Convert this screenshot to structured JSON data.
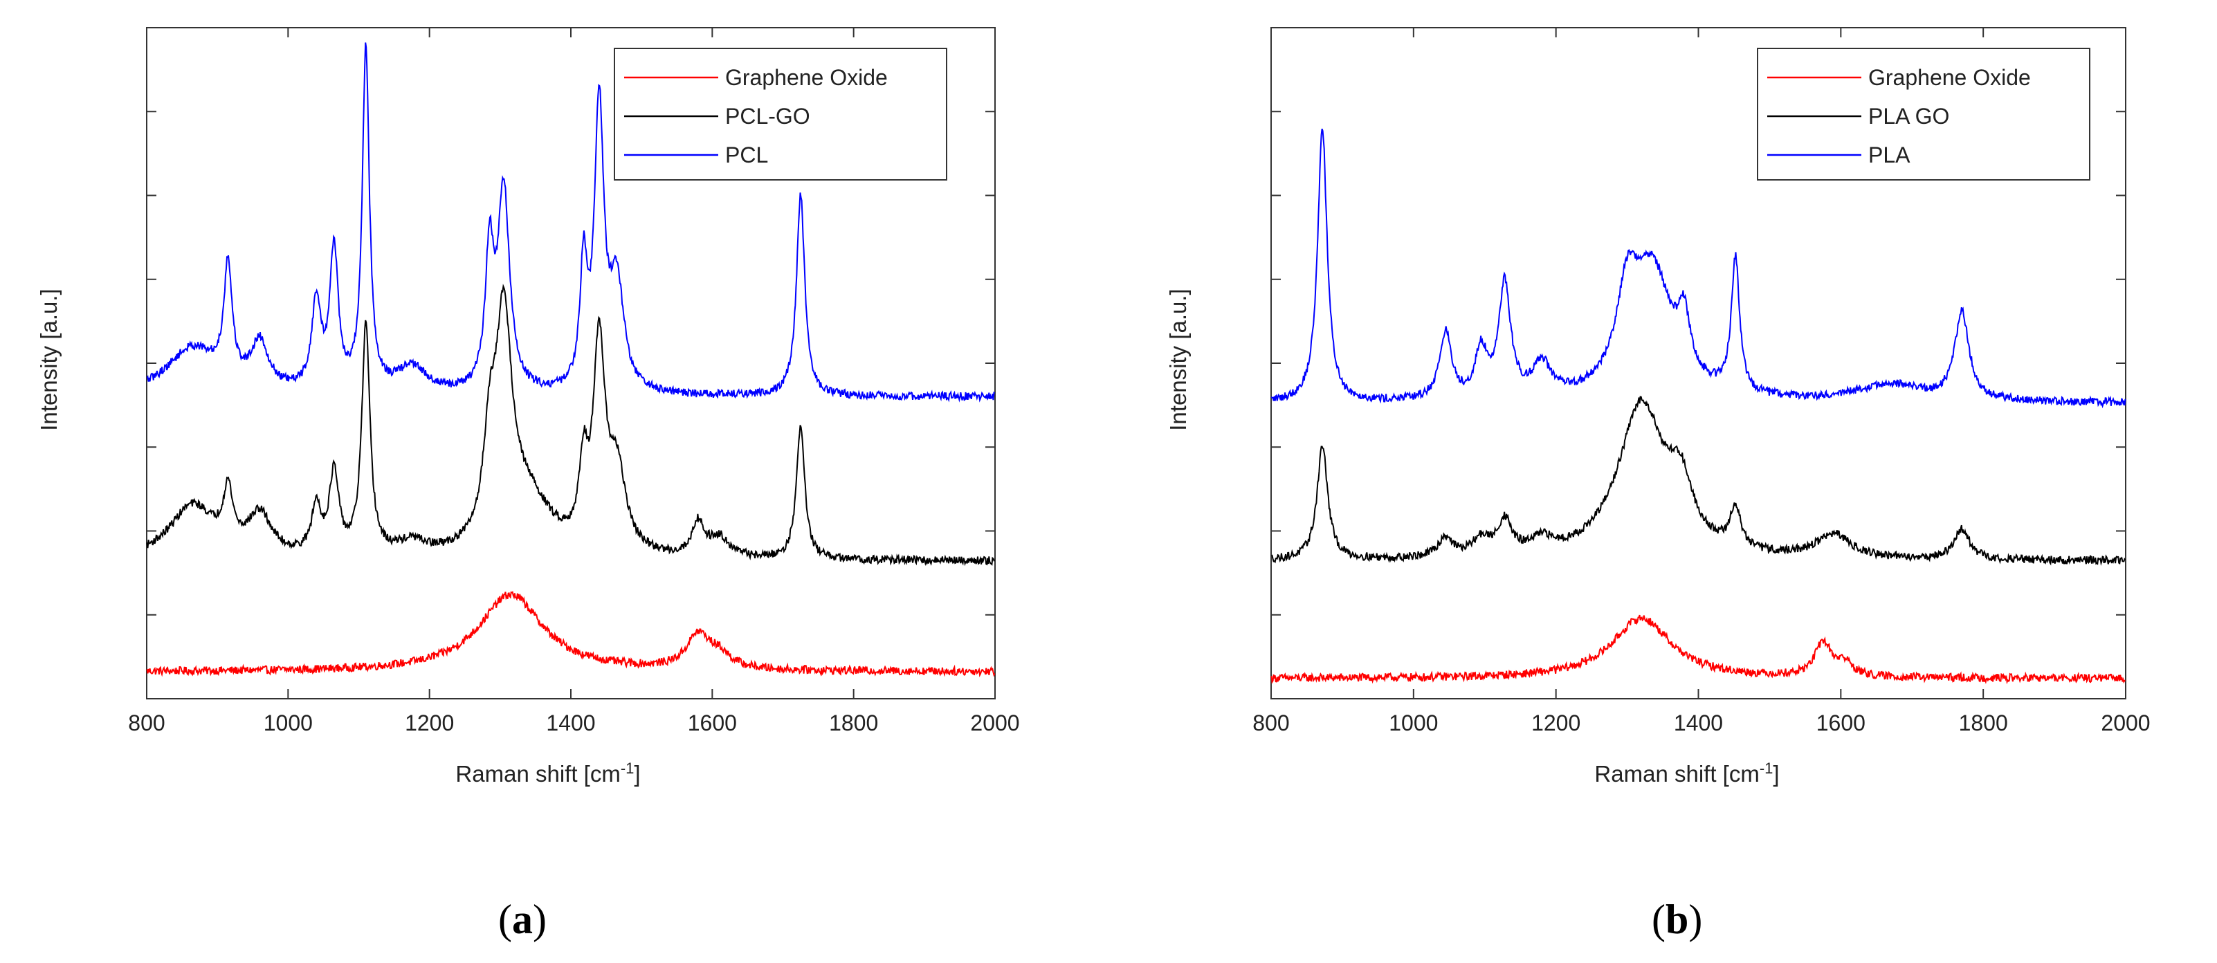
{
  "chart_data": [
    {
      "type": "line",
      "panel_label": "a",
      "title": "",
      "xlabel_text": "Raman shift [cm",
      "xlabel_sup": "-1",
      "xlabel_close": "]",
      "ylabel": "Intensity [a.u.]",
      "xlim": [
        800,
        2000
      ],
      "ylim": [
        0,
        10
      ],
      "x_ticks": [
        800,
        1000,
        1200,
        1400,
        1600,
        1800,
        2000
      ],
      "y_ticks_shown_as_labels": false,
      "legend_position": "top-right",
      "series": [
        {
          "name": "Graphene Oxide",
          "color": "#ff0000",
          "baseline": 0.4,
          "peaks": [
            [
              1315,
              1.15,
              55
            ],
            [
              1580,
              0.5,
              20
            ],
            [
              1610,
              0.2,
              20
            ]
          ]
        },
        {
          "name": "PCL-GO",
          "color": "#000000",
          "baseline": 2.05,
          "peaks": [
            [
              865,
              0.8,
              40
            ],
            [
              915,
              0.8,
              8
            ],
            [
              960,
              0.6,
              20
            ],
            [
              1040,
              0.7,
              8
            ],
            [
              1065,
              1.2,
              8
            ],
            [
              1110,
              3.4,
              7
            ],
            [
              1175,
              0.2,
              25
            ],
            [
              1285,
              1.3,
              10
            ],
            [
              1305,
              3.3,
              14
            ],
            [
              1340,
              0.8,
              40
            ],
            [
              1418,
              1.1,
              7
            ],
            [
              1440,
              3.0,
              10
            ],
            [
              1465,
              1.2,
              15
            ],
            [
              1580,
              0.5,
              10
            ],
            [
              1610,
              0.3,
              18
            ],
            [
              1725,
              2.0,
              7
            ]
          ]
        },
        {
          "name": "PCL",
          "color": "#0000ff",
          "baseline": 4.5,
          "peaks": [
            [
              865,
              0.7,
              45
            ],
            [
              915,
              1.7,
              7
            ],
            [
              960,
              0.7,
              15
            ],
            [
              1040,
              1.3,
              8
            ],
            [
              1065,
              2.1,
              7
            ],
            [
              1110,
              5.1,
              6
            ],
            [
              1175,
              0.4,
              25
            ],
            [
              1285,
              2.0,
              7
            ],
            [
              1305,
              3.0,
              10
            ],
            [
              1418,
              1.8,
              6
            ],
            [
              1440,
              4.2,
              8
            ],
            [
              1465,
              1.6,
              12
            ],
            [
              1725,
              3.0,
              7
            ]
          ]
        }
      ]
    },
    {
      "type": "line",
      "panel_label": "b",
      "title": "",
      "xlabel_text": "Raman shift [cm",
      "xlabel_sup": "-1",
      "xlabel_close": "]",
      "ylabel": "Intensity [a.u.]",
      "xlim": [
        800,
        2000
      ],
      "ylim": [
        0,
        10
      ],
      "x_ticks": [
        800,
        1000,
        1200,
        1400,
        1600,
        1800,
        2000
      ],
      "y_ticks_shown_as_labels": false,
      "legend_position": "top-right",
      "series": [
        {
          "name": "Graphene Oxide",
          "color": "#ff0000",
          "baseline": 0.3,
          "peaks": [
            [
              1320,
              0.9,
              50
            ],
            [
              1575,
              0.5,
              14
            ],
            [
              1605,
              0.2,
              14
            ]
          ]
        },
        {
          "name": "PLA GO",
          "color": "#000000",
          "baseline": 2.05,
          "peaks": [
            [
              872,
              1.7,
              9
            ],
            [
              1045,
              0.3,
              12
            ],
            [
              1095,
              0.25,
              15
            ],
            [
              1128,
              0.5,
              12
            ],
            [
              1180,
              0.2,
              20
            ],
            [
              1320,
              2.3,
              40
            ],
            [
              1375,
              0.8,
              20
            ],
            [
              1452,
              0.6,
              9
            ],
            [
              1590,
              0.35,
              30
            ],
            [
              1770,
              0.45,
              13
            ]
          ]
        },
        {
          "name": "PLA",
          "color": "#0000ff",
          "baseline": 4.4,
          "peaks": [
            [
              872,
              4.1,
              8
            ],
            [
              1045,
              1.0,
              10
            ],
            [
              1095,
              0.7,
              10
            ],
            [
              1128,
              1.7,
              10
            ],
            [
              1180,
              0.5,
              15
            ],
            [
              1300,
              1.2,
              18
            ],
            [
              1335,
              1.9,
              35
            ],
            [
              1380,
              0.8,
              10
            ],
            [
              1452,
              2.0,
              7
            ],
            [
              1670,
              0.25,
              60
            ],
            [
              1770,
              1.3,
              12
            ]
          ]
        }
      ]
    }
  ]
}
